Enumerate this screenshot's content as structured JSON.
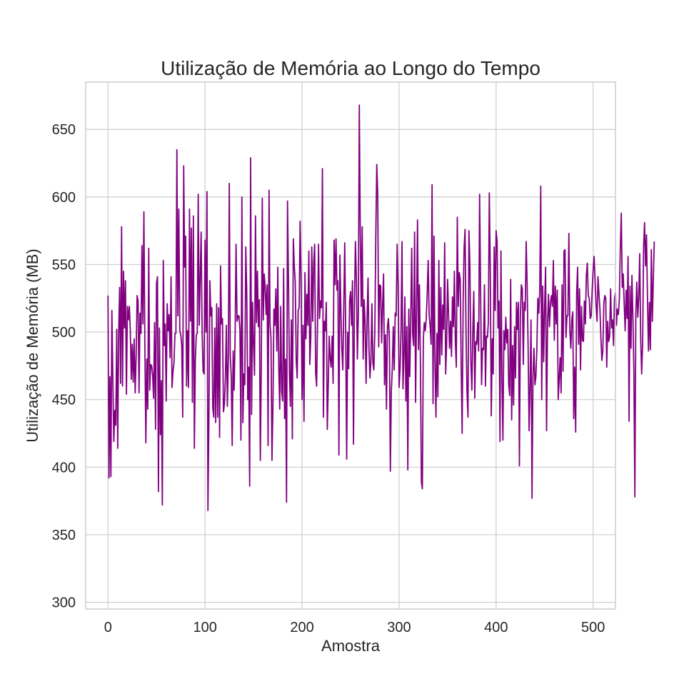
{
  "chart_data": {
    "type": "line",
    "title": "Utilização de Memória ao Longo do Tempo",
    "xlabel": "Amostra",
    "ylabel": "Utilização de Memória (MB)",
    "xlim": [
      -23,
      523
    ],
    "ylim": [
      295,
      685
    ],
    "xticks": [
      0,
      100,
      200,
      300,
      400,
      500
    ],
    "yticks": [
      300,
      350,
      400,
      450,
      500,
      550,
      600,
      650
    ],
    "grid": true,
    "legend": "none",
    "colors": {
      "line": "#800080",
      "grid": "#cccccc",
      "frame": "#cccccc",
      "text": "#262626",
      "background": "#ffffff"
    },
    "series": [
      {
        "values": [
          527,
          392,
          467,
          393,
          516,
          465,
          419,
          442,
          431,
          502,
          414,
          499,
          533,
          462,
          578,
          460,
          545,
          503,
          538,
          454,
          519,
          509,
          519,
          501,
          465,
          491,
          463,
          495,
          455,
          482,
          527,
          523,
          455,
          514,
          499,
          564,
          506,
          589,
          491,
          418,
          480,
          443,
          562,
          457,
          476,
          475,
          468,
          451,
          507,
          428,
          536,
          541,
          382,
          503,
          424,
          464,
          372,
          553,
          490,
          506,
          449,
          521,
          501,
          513,
          481,
          541,
          459,
          471,
          477,
          499,
          499,
          635,
          512,
          591,
          501,
          498,
          490,
          437,
          623,
          548,
          571,
          460,
          501,
          459,
          591,
          508,
          577,
          448,
          586,
          414,
          479,
          498,
          499,
          602,
          505,
          540,
          574,
          500,
          471,
          469,
          568,
          500,
          604,
          368,
          437,
          538,
          512,
          518,
          444,
          437,
          503,
          433,
          521,
          437,
          518,
          422,
          549,
          506,
          510,
          441,
          447,
          466,
          505,
          445,
          479,
          610,
          482,
          468,
          416,
          486,
          457,
          497,
          565,
          508,
          512,
          512,
          501,
          420,
          600,
          433,
          469,
          461,
          563,
          529,
          450,
          474,
          386,
          629,
          439,
          522,
          491,
          468,
          586,
          507,
          545,
          504,
          524,
          405,
          474,
          599,
          509,
          543,
          533,
          513,
          535,
          416,
          605,
          506,
          495,
          405,
          446,
          517,
          505,
          532,
          486,
          548,
          474,
          443,
          519,
          456,
          449,
          547,
          436,
          480,
          374,
          597,
          538,
          470,
          445,
          509,
          421,
          569,
          549,
          537,
          479,
          466,
          516,
          518,
          582,
          539,
          450,
          505,
          434,
          544,
          495,
          528,
          505,
          560,
          476,
          496,
          563,
          508,
          552,
          565,
          470,
          460,
          508,
          565,
          510,
          523,
          518,
          621,
          437,
          508,
          501,
          522,
          428,
          460,
          497,
          480,
          474,
          497,
          462,
          568,
          535,
          569,
          531,
          538,
          409,
          557,
          516,
          488,
          472,
          519,
          566,
          498,
          406,
          500,
          473,
          523,
          530,
          505,
          538,
          417,
          520,
          567,
          540,
          480,
          513,
          668,
          574,
          519,
          578,
          480,
          524,
          506,
          462,
          509,
          540,
          487,
          466,
          480,
          521,
          477,
          472,
          500,
          571,
          624,
          602,
          489,
          535,
          534,
          492,
          520,
          543,
          461,
          498,
          443,
          504,
          510,
          496,
          397,
          456,
          473,
          504,
          472,
          514,
          512,
          565,
          535,
          459,
          473,
          501,
          567,
          458,
          481,
          526,
          449,
          504,
          398,
          517,
          467,
          509,
          562,
          498,
          490,
          574,
          448,
          516,
          583,
          487,
          535,
          477,
          389,
          384,
          495,
          507,
          501,
          510,
          529,
          553,
          512,
          505,
          491,
          609,
          447,
          571,
          478,
          437,
          499,
          452,
          553,
          476,
          533,
          483,
          520,
          502,
          566,
          469,
          491,
          539,
          513,
          488,
          508,
          482,
          526,
          504,
          545,
          493,
          474,
          585,
          519,
          544,
          539,
          475,
          425,
          521,
          562,
          576,
          499,
          456,
          437,
          575,
          549,
          479,
          457,
          501,
          530,
          451,
          493,
          491,
          507,
          486,
          602,
          532,
          461,
          488,
          487,
          535,
          460,
          497,
          496,
          507,
          603,
          545,
          438,
          495,
          469,
          563,
          516,
          575,
          567,
          503,
          523,
          419,
          560,
          466,
          420,
          501,
          487,
          511,
          492,
          502,
          461,
          453,
          539,
          435,
          490,
          446,
          504,
          466,
          522,
          502,
          522,
          401,
          511,
          535,
          532,
          476,
          522,
          516,
          567,
          534,
          488,
          427,
          461,
          509,
          377,
          467,
          488,
          461,
          467,
          488,
          525,
          514,
          531,
          608,
          450,
          534,
          478,
          518,
          548,
          427,
          506,
          528,
          504,
          521,
          527,
          519,
          553,
          494,
          534,
          506,
          531,
          450,
          465,
          481,
          455,
          535,
          471,
          560,
          561,
          496,
          512,
          512,
          573,
          501,
          488,
          509,
          515,
          436,
          474,
          426,
          528,
          548,
          491,
          532,
          472,
          519,
          494,
          493,
          523,
          506,
          542,
          551,
          527,
          525,
          510,
          512,
          531,
          546,
          556,
          538,
          520,
          508,
          541,
          528,
          517,
          496,
          479,
          486,
          521,
          527,
          525,
          474,
          508,
          493,
          497,
          532,
          503,
          509,
          490,
          525,
          529,
          505,
          517,
          513,
          524,
          562,
          588,
          533,
          543,
          521,
          501,
          531,
          510,
          556,
          434,
          534,
          488,
          542,
          510,
          470,
          378,
          514,
          537,
          511,
          526,
          558,
          496,
          469,
          491,
          563,
          581,
          549,
          572,
          525,
          486,
          522,
          487,
          561,
          508,
          538,
          567
        ]
      }
    ]
  }
}
